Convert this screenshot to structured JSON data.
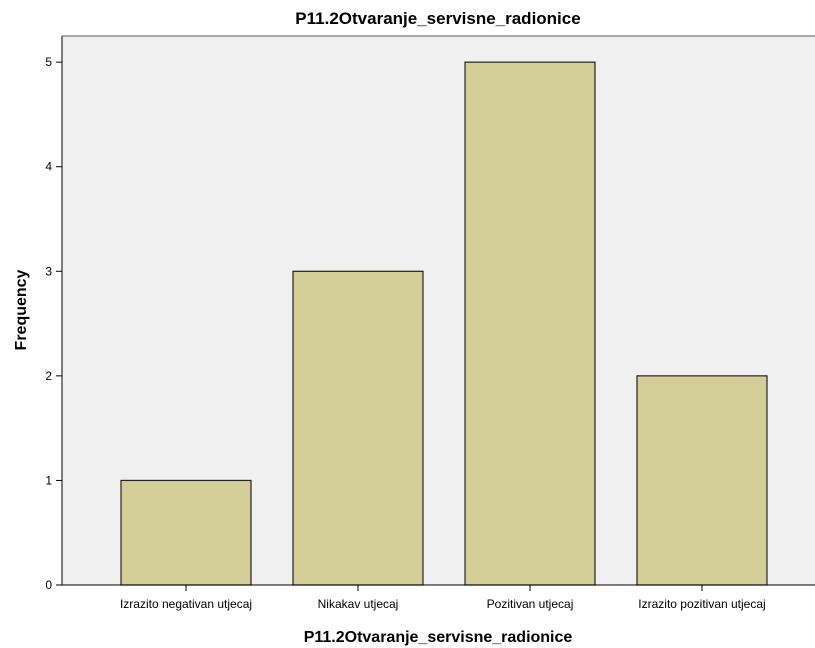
{
  "chart_data": {
    "type": "bar",
    "title": "P11.2Otvaranje_servisne_radionice",
    "xlabel": "P11.2Otvaranje_servisne_radionice",
    "ylabel": "Frequency",
    "categories": [
      "Izrazito negativan utjecaj",
      "Nikakav utjecaj",
      "Pozitivan utjecaj",
      "Izrazito pozitivan utjecaj"
    ],
    "values": [
      1,
      3,
      5,
      2
    ],
    "ylim": [
      0,
      5.25
    ],
    "yticks": [
      "0",
      "1",
      "2",
      "3",
      "4",
      "5"
    ],
    "grid": false,
    "legend": "none",
    "colors": {
      "bar_fill": "#d3ce97",
      "bar_stroke": "#222222",
      "plot_background": "#f0f0f0",
      "axis": "#000000"
    }
  }
}
